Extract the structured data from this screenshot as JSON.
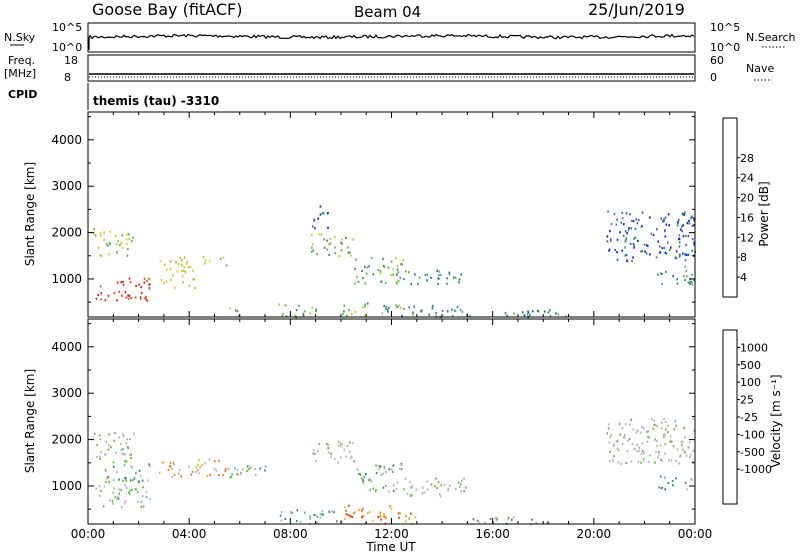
{
  "header": {
    "station": "Goose Bay (fitACF)",
    "beam": "Beam 04",
    "date": "25/Jun/2019"
  },
  "strips": {
    "nsky_label": "N.Sky",
    "nsky_ticks": [
      "10^5",
      "10^0"
    ],
    "nsearch_label": "N.Search",
    "nsearch_ticks": [
      "10^5",
      "10^0"
    ],
    "freq_label": [
      "Freq.",
      "[MHz]"
    ],
    "freq_ticks": [
      "18",
      "8"
    ],
    "nave_label": "Nave",
    "nave_ticks": [
      "60",
      "0"
    ],
    "cpid_label": "CPID",
    "cpid_text": "themis (tau) -3310"
  },
  "chart_data": [
    {
      "type": "heatmap",
      "name": "power",
      "xlabel": "Time UT",
      "ylabel": "Slant Range [km]",
      "x_ticks": [
        "00:00",
        "04:00",
        "08:00",
        "12:00",
        "16:00",
        "20:00",
        "00:00"
      ],
      "xlim_hours": [
        0,
        24
      ],
      "ylim": [
        180,
        4600
      ],
      "y_ticks": [
        1000,
        2000,
        3000,
        4000
      ],
      "colorbar_label": "Power [dB]",
      "colorbar_ticks": [
        "4",
        "8",
        "12",
        "16",
        "20",
        "24",
        "28"
      ],
      "colorbar_colors": [
        "#0a1ee6",
        "#2b5cb8",
        "#2e8a72",
        "#4cb84c",
        "#a8d232",
        "#f0c020",
        "#f08c1e",
        "#e8501e",
        "#dc1e1e"
      ],
      "regions": [
        {
          "t": [
            0.2,
            2.5
          ],
          "r": [
            550,
            1050
          ],
          "level": 8
        },
        {
          "t": [
            0.2,
            1.8
          ],
          "r": [
            1500,
            2100
          ],
          "level": 4
        },
        {
          "t": [
            2.8,
            4.2
          ],
          "r": [
            800,
            1500
          ],
          "level": 5
        },
        {
          "t": [
            4.5,
            5.5
          ],
          "r": [
            1300,
            1500
          ],
          "level": 4
        },
        {
          "t": [
            5.5,
            6.0
          ],
          "r": [
            200,
            400
          ],
          "level": 3
        },
        {
          "t": [
            7.5,
            9.0
          ],
          "r": [
            200,
            500
          ],
          "level": 3
        },
        {
          "t": [
            8.8,
            10.5
          ],
          "r": [
            1500,
            2000
          ],
          "level": 3
        },
        {
          "t": [
            8.8,
            9.5
          ],
          "r": [
            2100,
            2600
          ],
          "level": 1
        },
        {
          "t": [
            10.5,
            12.5
          ],
          "r": [
            900,
            1500
          ],
          "level": 3
        },
        {
          "t": [
            10.0,
            12.5
          ],
          "r": [
            200,
            500
          ],
          "level": 3
        },
        {
          "t": [
            12.5,
            15.0
          ],
          "r": [
            900,
            1200
          ],
          "level": 2
        },
        {
          "t": [
            12.5,
            15.0
          ],
          "r": [
            200,
            450
          ],
          "level": 2
        },
        {
          "t": [
            15.0,
            19.0
          ],
          "r": [
            200,
            350
          ],
          "level": 2
        },
        {
          "t": [
            20.5,
            24.0
          ],
          "r": [
            1400,
            2500
          ],
          "level": 1
        },
        {
          "t": [
            22.5,
            24.0
          ],
          "r": [
            900,
            1300
          ],
          "level": 2
        }
      ]
    },
    {
      "type": "heatmap",
      "name": "velocity",
      "xlabel": "Time UT",
      "ylabel": "Slant Range [km]",
      "x_ticks": [
        "00:00",
        "04:00",
        "08:00",
        "12:00",
        "16:00",
        "20:00",
        "00:00"
      ],
      "xlim_hours": [
        0,
        24
      ],
      "ylim": [
        180,
        4600
      ],
      "y_ticks": [
        1000,
        2000,
        3000,
        4000
      ],
      "colorbar_label": "Velocity [m s⁻¹]",
      "colorbar_ticks": [
        "1000",
        "500",
        "100",
        "25",
        "-25",
        "-100",
        "-500",
        "-1000"
      ],
      "colorbar_colors": [
        "#1432c8",
        "#2860b4",
        "#2e8a5a",
        "#5cc040",
        "#b4b4b4",
        "#b4b4b4",
        "#f0b420",
        "#f07820",
        "#e84020",
        "#e01414"
      ],
      "regions": [
        {
          "t": [
            0.2,
            2.5
          ],
          "r": [
            550,
            1050
          ],
          "level": 4
        },
        {
          "t": [
            0.2,
            1.8
          ],
          "r": [
            1500,
            2200
          ],
          "level": 4
        },
        {
          "t": [
            0.5,
            2.5
          ],
          "r": [
            1100,
            1500
          ],
          "level": 3
        },
        {
          "t": [
            2.8,
            5.5
          ],
          "r": [
            1200,
            1600
          ],
          "level": 6
        },
        {
          "t": [
            5.5,
            7.0
          ],
          "r": [
            1200,
            1550
          ],
          "level": 3
        },
        {
          "t": [
            7.5,
            10.0
          ],
          "r": [
            200,
            500
          ],
          "level": 3
        },
        {
          "t": [
            8.8,
            10.5
          ],
          "r": [
            1500,
            2000
          ],
          "level": 4
        },
        {
          "t": [
            10.0,
            13.0
          ],
          "r": [
            200,
            600
          ],
          "level": 7
        },
        {
          "t": [
            10.5,
            12.5
          ],
          "r": [
            900,
            1500
          ],
          "level": 3
        },
        {
          "t": [
            12.5,
            15.0
          ],
          "r": [
            800,
            1200
          ],
          "level": 4
        },
        {
          "t": [
            15.0,
            19.0
          ],
          "r": [
            200,
            350
          ],
          "level": 3
        },
        {
          "t": [
            20.5,
            24.0
          ],
          "r": [
            1500,
            2500
          ],
          "level": 4
        },
        {
          "t": [
            22.5,
            24.0
          ],
          "r": [
            950,
            1250
          ],
          "level": 3
        }
      ]
    }
  ]
}
